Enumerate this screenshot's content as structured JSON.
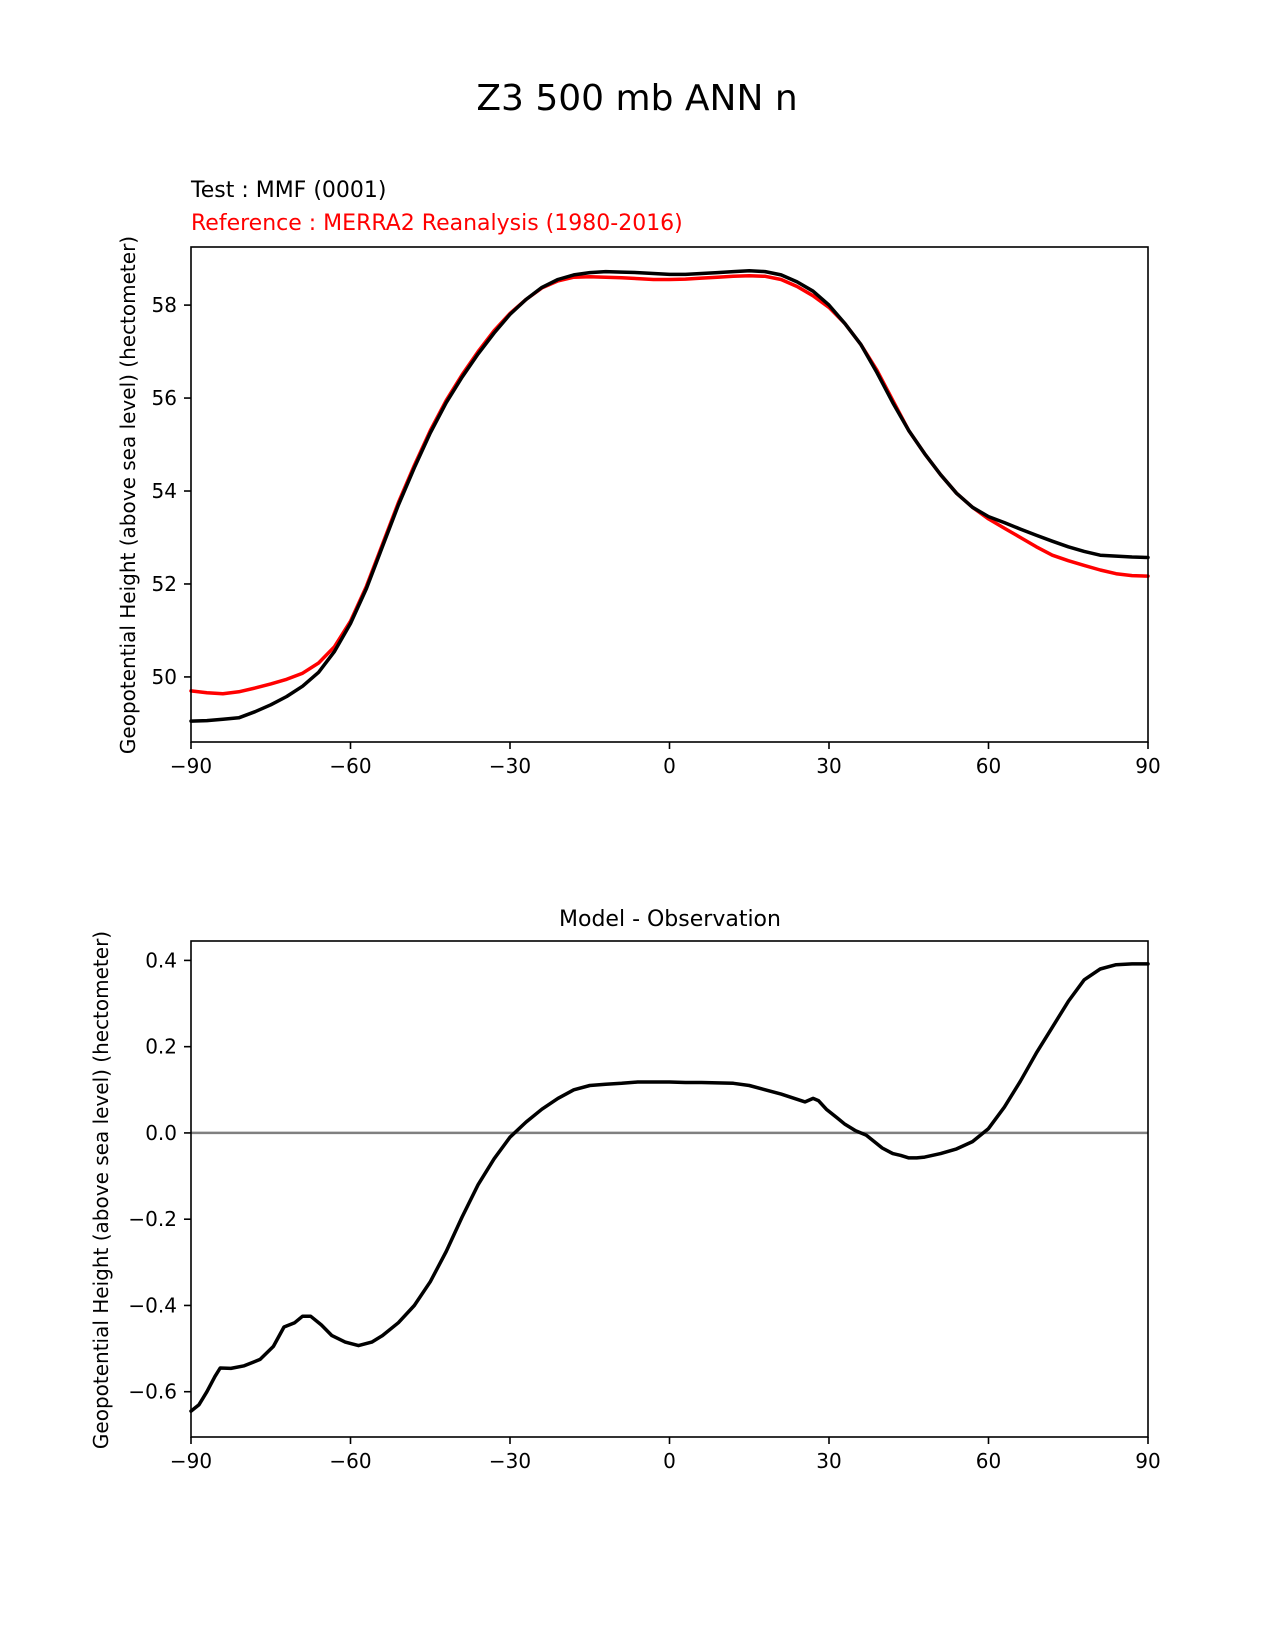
{
  "figure": {
    "title": "Z3 500 mb ANN n"
  },
  "chart_data": [
    {
      "type": "line",
      "test_label": "Test : MMF (0001)",
      "reference_label": "Reference : MERRA2 Reanalysis (1980-2016)",
      "ylabel": "Geopotential Height (above sea level) (hectometer)",
      "xlabel": "",
      "xlim": [
        -90,
        90
      ],
      "ylim": [
        48.6,
        59.25
      ],
      "xticks": [
        -90,
        -60,
        -30,
        0,
        30,
        60,
        90
      ],
      "xtick_labels": [
        "−90",
        "−60",
        "−30",
        "0",
        "30",
        "60",
        "90"
      ],
      "yticks": [
        50,
        52,
        54,
        56,
        58
      ],
      "ytick_labels": [
        "50",
        "52",
        "54",
        "56",
        "58"
      ],
      "colors": {
        "test": "#000000",
        "reference": "#ff0000"
      },
      "series": [
        {
          "role": "test",
          "x": [
            -90,
            -87,
            -84,
            -81,
            -78,
            -75,
            -72,
            -69,
            -66,
            -63,
            -60,
            -57,
            -54,
            -51,
            -48,
            -45,
            -42,
            -39,
            -36,
            -33,
            -30,
            -27,
            -24,
            -21,
            -18,
            -15,
            -12,
            -9,
            -6,
            -3,
            0,
            3,
            6,
            9,
            12,
            15,
            18,
            21,
            24,
            27,
            30,
            33,
            36,
            39,
            42,
            45,
            48,
            51,
            54,
            57,
            60,
            63,
            66,
            69,
            72,
            75,
            78,
            81,
            84,
            87,
            90
          ],
          "values": [
            49.05,
            49.06,
            49.09,
            49.12,
            49.25,
            49.4,
            49.58,
            49.8,
            50.1,
            50.55,
            51.15,
            51.9,
            52.8,
            53.7,
            54.5,
            55.25,
            55.9,
            56.45,
            56.95,
            57.4,
            57.8,
            58.12,
            58.38,
            58.55,
            58.65,
            58.7,
            58.72,
            58.71,
            58.7,
            58.68,
            58.66,
            58.66,
            58.68,
            58.7,
            58.72,
            58.74,
            58.72,
            58.65,
            58.5,
            58.3,
            58.0,
            57.6,
            57.15,
            56.55,
            55.9,
            55.3,
            54.8,
            54.35,
            53.95,
            53.65,
            53.45,
            53.32,
            53.18,
            53.05,
            52.92,
            52.8,
            52.7,
            52.62,
            52.6,
            52.58,
            52.57
          ]
        },
        {
          "role": "reference",
          "x": [
            -90,
            -87,
            -84,
            -81,
            -78,
            -75,
            -72,
            -69,
            -66,
            -63,
            -60,
            -57,
            -54,
            -51,
            -48,
            -45,
            -42,
            -39,
            -36,
            -33,
            -30,
            -27,
            -24,
            -21,
            -18,
            -15,
            -12,
            -9,
            -6,
            -3,
            0,
            3,
            6,
            9,
            12,
            15,
            18,
            21,
            24,
            27,
            30,
            33,
            36,
            39,
            42,
            45,
            48,
            51,
            54,
            57,
            60,
            63,
            66,
            69,
            72,
            75,
            78,
            81,
            84,
            87,
            90
          ],
          "values": [
            49.7,
            49.66,
            49.64,
            49.68,
            49.76,
            49.85,
            49.95,
            50.08,
            50.3,
            50.65,
            51.2,
            51.95,
            52.85,
            53.75,
            54.55,
            55.3,
            55.95,
            56.5,
            57.0,
            57.45,
            57.82,
            58.12,
            58.37,
            58.52,
            58.6,
            58.61,
            58.6,
            58.59,
            58.57,
            58.55,
            58.55,
            58.56,
            58.58,
            58.6,
            58.62,
            58.63,
            58.62,
            58.55,
            58.4,
            58.2,
            57.95,
            57.6,
            57.15,
            56.6,
            55.95,
            55.3,
            54.8,
            54.35,
            53.95,
            53.65,
            53.4,
            53.2,
            53.0,
            52.8,
            52.62,
            52.5,
            52.4,
            52.3,
            52.22,
            52.18,
            52.17
          ]
        }
      ]
    },
    {
      "type": "line",
      "title": "Model - Observation",
      "ylabel": "Geopotential Height (above sea level) (hectometer)",
      "xlabel": "",
      "xlim": [
        -90,
        90
      ],
      "ylim": [
        -0.705,
        0.445
      ],
      "xticks": [
        -90,
        -60,
        -30,
        0,
        30,
        60,
        90
      ],
      "xtick_labels": [
        "−90",
        "−60",
        "−30",
        "0",
        "30",
        "60",
        "90"
      ],
      "yticks": [
        -0.6,
        -0.4,
        -0.2,
        0.0,
        0.2,
        0.4
      ],
      "ytick_labels": [
        "−0.6",
        "−0.4",
        "−0.2",
        "0.0",
        "0.2",
        "0.4"
      ],
      "zero_line": 0.0,
      "colors": {
        "difference": "#000000",
        "zero_line": "#808080"
      },
      "series": [
        {
          "role": "difference",
          "x": [
            -90,
            -88.5,
            -87,
            -85.5,
            -84.5,
            -82.5,
            -80,
            -77,
            -74.5,
            -72.5,
            -70.5,
            -69,
            -67.5,
            -65.5,
            -63.5,
            -61,
            -58.5,
            -56,
            -54,
            -51,
            -48,
            -45,
            -42,
            -39,
            -36,
            -33,
            -30,
            -27,
            -24,
            -21,
            -18,
            -15,
            -12,
            -9,
            -6,
            -3,
            0,
            3,
            6,
            9,
            12,
            15,
            18,
            21,
            24,
            25.5,
            27,
            28,
            29.5,
            31.5,
            33,
            35,
            37,
            40,
            42,
            43.5,
            45,
            46.5,
            48,
            51,
            54,
            57,
            60,
            63,
            66,
            69,
            72,
            75,
            78,
            81,
            84,
            87,
            90
          ],
          "values": [
            -0.645,
            -0.63,
            -0.6,
            -0.565,
            -0.545,
            -0.546,
            -0.54,
            -0.525,
            -0.495,
            -0.45,
            -0.44,
            -0.425,
            -0.425,
            -0.445,
            -0.47,
            -0.485,
            -0.493,
            -0.485,
            -0.47,
            -0.44,
            -0.4,
            -0.345,
            -0.275,
            -0.195,
            -0.12,
            -0.06,
            -0.01,
            0.025,
            0.055,
            0.08,
            0.1,
            0.11,
            0.113,
            0.115,
            0.118,
            0.118,
            0.118,
            0.117,
            0.117,
            0.116,
            0.115,
            0.11,
            0.1,
            0.09,
            0.078,
            0.072,
            0.08,
            0.075,
            0.055,
            0.035,
            0.02,
            0.005,
            -0.005,
            -0.035,
            -0.048,
            -0.052,
            -0.058,
            -0.058,
            -0.056,
            -0.048,
            -0.037,
            -0.02,
            0.01,
            0.06,
            0.12,
            0.185,
            0.245,
            0.305,
            0.355,
            0.38,
            0.39,
            0.392,
            0.392
          ]
        }
      ]
    }
  ]
}
